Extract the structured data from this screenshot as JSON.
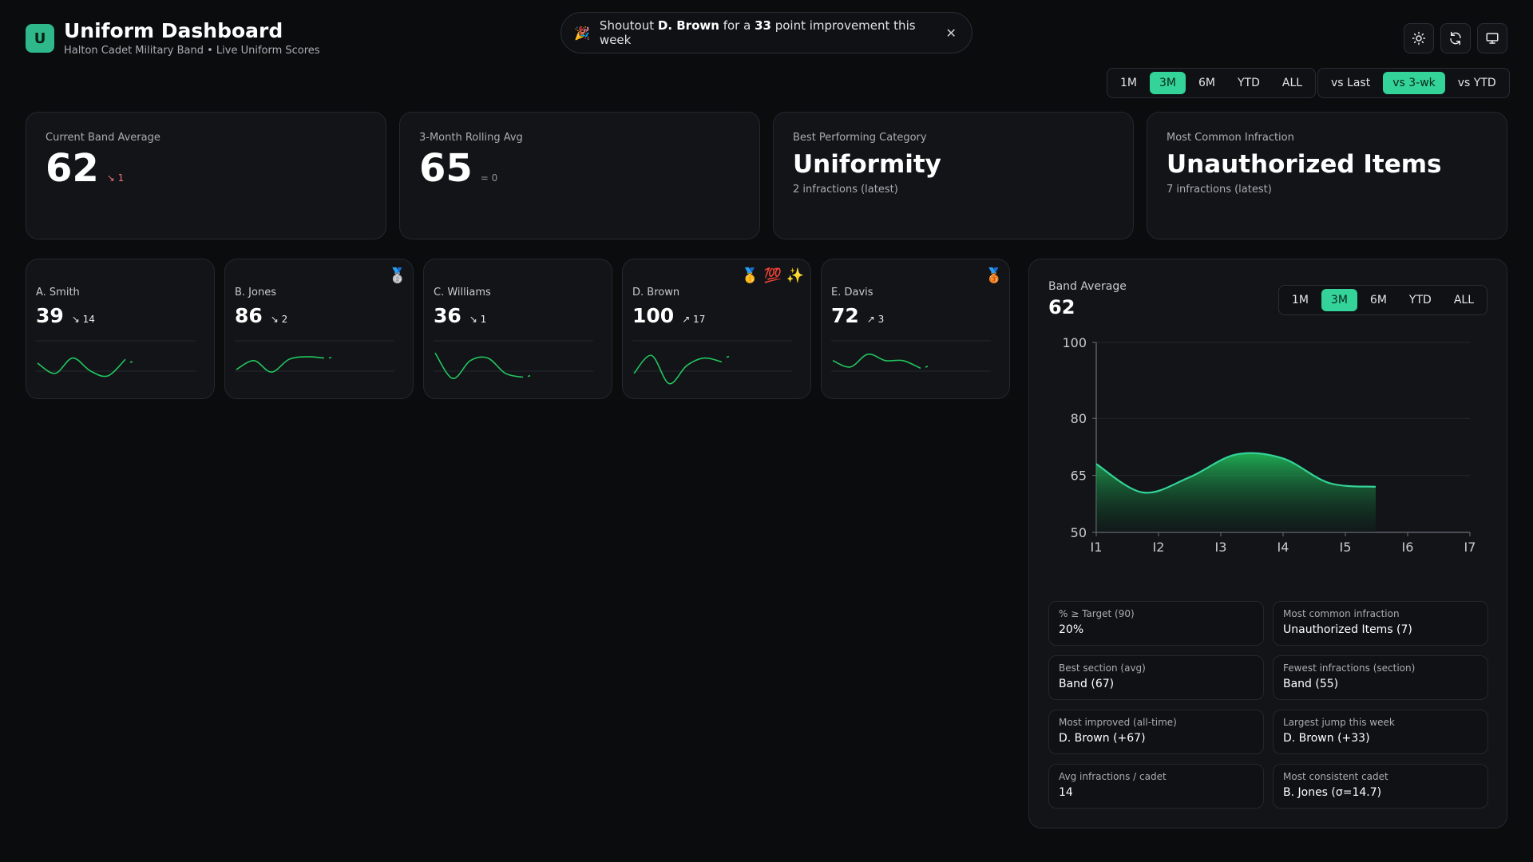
{
  "header": {
    "logo_letter": "U",
    "title": "Uniform Dashboard",
    "subtitle": "Halton Cadet Military Band • Live Uniform Scores"
  },
  "shoutout": {
    "emoji": "🎉",
    "prefix": "Shoutout",
    "name": "D. Brown",
    "middle": "for a",
    "points": "33",
    "suffix": "point improvement this week",
    "close": "✕"
  },
  "toolbar": {
    "icons": [
      "sun-icon",
      "refresh-icon",
      "monitor-icon"
    ]
  },
  "range_tabs": [
    "1M",
    "3M",
    "6M",
    "YTD",
    "ALL"
  ],
  "range_active": "3M",
  "compare_tabs": [
    "vs Last",
    "vs 3-wk",
    "vs YTD"
  ],
  "compare_active": "vs 3-wk",
  "kpis": {
    "current": {
      "label": "Current Band Average",
      "value": "62",
      "delta": "↘ 1"
    },
    "rolling": {
      "label": "3-Month Rolling Avg",
      "value": "65",
      "delta": "= 0"
    },
    "best_category": {
      "label": "Best Performing Category",
      "value": "Uniformity",
      "sub": "2 infractions (latest)"
    },
    "common_infraction": {
      "label": "Most Common Infraction",
      "value": "Unauthorized Items",
      "sub": "7 infractions (latest)"
    }
  },
  "cadets": [
    {
      "name": "A. Smith",
      "score": "39",
      "delta": "↘ 14",
      "trend": "down",
      "badges": "",
      "spark": [
        60,
        52,
        64,
        54,
        50,
        63,
        55
      ]
    },
    {
      "name": "B. Jones",
      "score": "86",
      "delta": "↘ 2",
      "trend": "down",
      "badges": "🥈",
      "spark": [
        55,
        62,
        53,
        63,
        65,
        64,
        64
      ]
    },
    {
      "name": "C. Williams",
      "score": "36",
      "delta": "↘ 1",
      "trend": "down",
      "badges": "",
      "spark": [
        68,
        48,
        62,
        64,
        52,
        49,
        51
      ]
    },
    {
      "name": "D. Brown",
      "score": "100",
      "delta": "↗ 17",
      "trend": "up",
      "badges": "🥇 💯 ✨",
      "spark": [
        52,
        66,
        44,
        58,
        64,
        61,
        73
      ]
    },
    {
      "name": "E. Davis",
      "score": "72",
      "delta": "↗ 3",
      "trend": "up",
      "badges": "🥉",
      "spark": [
        62,
        57,
        67,
        62,
        62,
        56,
        59
      ]
    }
  ],
  "band_panel": {
    "label": "Band Average",
    "value": "62",
    "tabs": [
      "1M",
      "3M",
      "6M",
      "YTD",
      "ALL"
    ],
    "active": "3M"
  },
  "chart_data": {
    "type": "area",
    "x": [
      "I1",
      "I2",
      "I3",
      "I4",
      "I5",
      "I6",
      "I7"
    ],
    "series": [
      {
        "values": [
          68,
          60.5,
          64.5,
          70.5,
          69.5,
          63,
          62
        ]
      }
    ],
    "yticks": [
      100,
      80,
      65,
      50
    ],
    "ylim": [
      50,
      100
    ],
    "color": "#34d399",
    "grid": true
  },
  "stats": [
    {
      "label": "% ≥ Target (90)",
      "value": "20%"
    },
    {
      "label": "Most common infraction",
      "value": "Unauthorized Items (7)"
    },
    {
      "label": "Best section (avg)",
      "value": "Band (67)"
    },
    {
      "label": "Fewest infractions (section)",
      "value": "Band (55)"
    },
    {
      "label": "Most improved (all-time)",
      "value": "D. Brown (+67)"
    },
    {
      "label": "Largest jump this week",
      "value": "D. Brown (+33)"
    },
    {
      "label": "Avg infractions / cadet",
      "value": "14"
    },
    {
      "label": "Most consistent cadet",
      "value": "B. Jones (σ=14.7)"
    }
  ]
}
